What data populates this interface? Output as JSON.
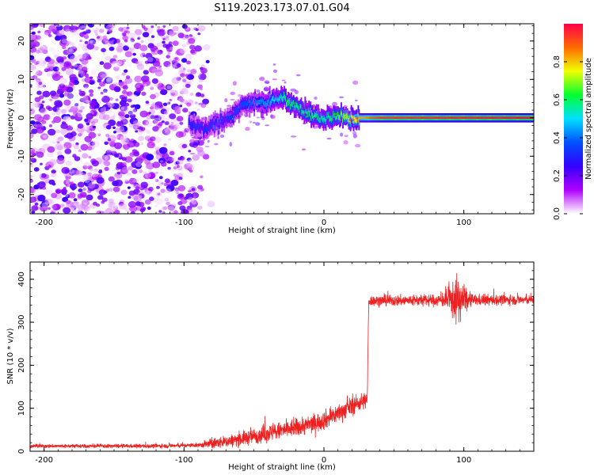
{
  "title": "S119.2023.173.07.01.G04",
  "chart_data": [
    {
      "type": "heatmap",
      "xlabel": "Height of straight line (km)",
      "ylabel": "Frequency (Hz)",
      "xlim": [
        -210,
        150
      ],
      "ylim": [
        -25,
        24.5
      ],
      "xticks": [
        -200,
        -100,
        0,
        100
      ],
      "yticks": [
        -20,
        -10,
        0,
        10,
        20
      ],
      "colorbar": {
        "label": "Normalized spectral amplitude",
        "range": [
          0,
          1
        ],
        "ticks": [
          "0.0",
          "0.2",
          "0.4",
          "0.6",
          "0.8"
        ],
        "colormap": [
          "#ffffff",
          "#b000ff",
          "#3200ff",
          "#0050ff",
          "#00e0ff",
          "#00ff30",
          "#f0ff00",
          "#ff6a00",
          "#ff0048"
        ]
      },
      "noise_region": {
        "x_range": [
          -210,
          -80
        ],
        "amplitude_range": [
          0.0,
          0.25
        ]
      },
      "ridge": [
        {
          "x": -95,
          "y": -1.5
        },
        {
          "x": -90,
          "y": -3
        },
        {
          "x": -85,
          "y": -3
        },
        {
          "x": -80,
          "y": -2
        },
        {
          "x": -75,
          "y": -1
        },
        {
          "x": -70,
          "y": 0
        },
        {
          "x": -65,
          "y": 1
        },
        {
          "x": -60,
          "y": 3
        },
        {
          "x": -55,
          "y": 3.5
        },
        {
          "x": -50,
          "y": 4
        },
        {
          "x": -45,
          "y": 3.5
        },
        {
          "x": -40,
          "y": 4
        },
        {
          "x": -35,
          "y": 5
        },
        {
          "x": -30,
          "y": 5.5
        },
        {
          "x": -25,
          "y": 4
        },
        {
          "x": -20,
          "y": 3
        },
        {
          "x": -15,
          "y": 2
        },
        {
          "x": -10,
          "y": 1
        },
        {
          "x": -5,
          "y": 0.5
        },
        {
          "x": 0,
          "y": -0.5
        },
        {
          "x": 5,
          "y": 0.5
        },
        {
          "x": 10,
          "y": 0.5
        },
        {
          "x": 15,
          "y": 0
        },
        {
          "x": 20,
          "y": 0
        },
        {
          "x": 30,
          "y": 0
        },
        {
          "x": 50,
          "y": 0
        },
        {
          "x": 85,
          "y": 0
        },
        {
          "x": 100,
          "y": 0
        },
        {
          "x": 150,
          "y": 0
        }
      ],
      "ridge_amplitude": [
        {
          "x": -95,
          "a": 0.3
        },
        {
          "x": -60,
          "a": 0.35
        },
        {
          "x": -40,
          "a": 0.45
        },
        {
          "x": -25,
          "a": 0.6
        },
        {
          "x": 0,
          "a": 0.55
        },
        {
          "x": 20,
          "a": 0.75
        },
        {
          "x": 40,
          "a": 0.95
        },
        {
          "x": 150,
          "a": 1.0
        }
      ]
    },
    {
      "type": "line",
      "xlabel": "Height of straight line (km)",
      "ylabel": "SNR (10 * v/v)",
      "xlim": [
        -210,
        150
      ],
      "ylim": [
        0,
        440
      ],
      "xticks": [
        -200,
        -100,
        0,
        100
      ],
      "yticks": [
        0,
        100,
        200,
        300,
        400
      ],
      "color": "#ee2020",
      "trend": [
        {
          "x": -210,
          "y": 12
        },
        {
          "x": -120,
          "y": 12
        },
        {
          "x": -90,
          "y": 14
        },
        {
          "x": -80,
          "y": 18
        },
        {
          "x": -70,
          "y": 22
        },
        {
          "x": -60,
          "y": 28
        },
        {
          "x": -50,
          "y": 35
        },
        {
          "x": -40,
          "y": 42
        },
        {
          "x": -30,
          "y": 48
        },
        {
          "x": -20,
          "y": 55
        },
        {
          "x": -10,
          "y": 62
        },
        {
          "x": 0,
          "y": 72
        },
        {
          "x": 10,
          "y": 88
        },
        {
          "x": 20,
          "y": 105
        },
        {
          "x": 31,
          "y": 120
        },
        {
          "x": 32,
          "y": 350
        },
        {
          "x": 150,
          "y": 352
        }
      ],
      "noise_amplitude": [
        {
          "x": -210,
          "a": 4
        },
        {
          "x": -90,
          "a": 5
        },
        {
          "x": -80,
          "a": 12
        },
        {
          "x": -40,
          "a": 20
        },
        {
          "x": 0,
          "a": 22
        },
        {
          "x": 30,
          "a": 20
        },
        {
          "x": 32,
          "a": 12
        },
        {
          "x": 85,
          "a": 14
        },
        {
          "x": 95,
          "a": 55
        },
        {
          "x": 105,
          "a": 14
        },
        {
          "x": 150,
          "a": 10
        }
      ]
    }
  ]
}
